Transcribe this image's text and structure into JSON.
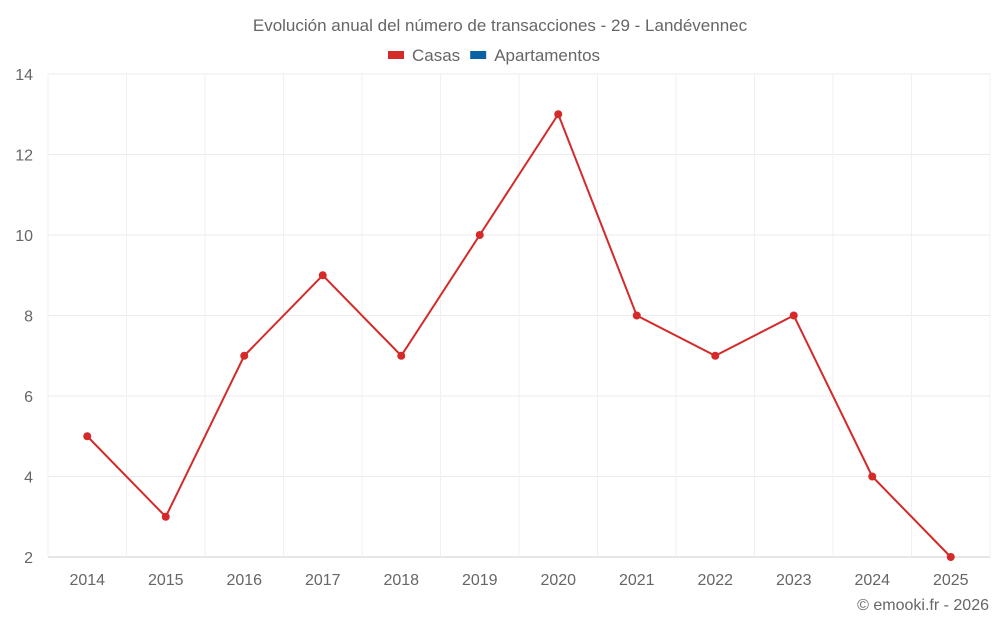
{
  "chart_data": {
    "type": "line",
    "title": "Evolución anual del número de transacciones - 29 - Landévennec",
    "legend": [
      {
        "name": "Casas",
        "color": "#d42a2a"
      },
      {
        "name": "Apartamentos",
        "color": "#0a64a4"
      }
    ],
    "legend_position": "top-center",
    "categories": [
      "2014",
      "2015",
      "2016",
      "2017",
      "2018",
      "2019",
      "2020",
      "2021",
      "2022",
      "2023",
      "2024",
      "2025"
    ],
    "series": [
      {
        "name": "Casas",
        "color": "#d42a2a",
        "values": [
          5,
          3,
          7,
          9,
          7,
          10,
          13,
          8,
          7,
          8,
          4,
          2
        ]
      }
    ],
    "ylim": [
      2,
      14
    ],
    "yticks": [
      2,
      4,
      6,
      8,
      10,
      12,
      14
    ],
    "grid": true,
    "xlabel": "",
    "ylabel": ""
  },
  "footer": {
    "credit": "© emooki.fr - 2026"
  }
}
